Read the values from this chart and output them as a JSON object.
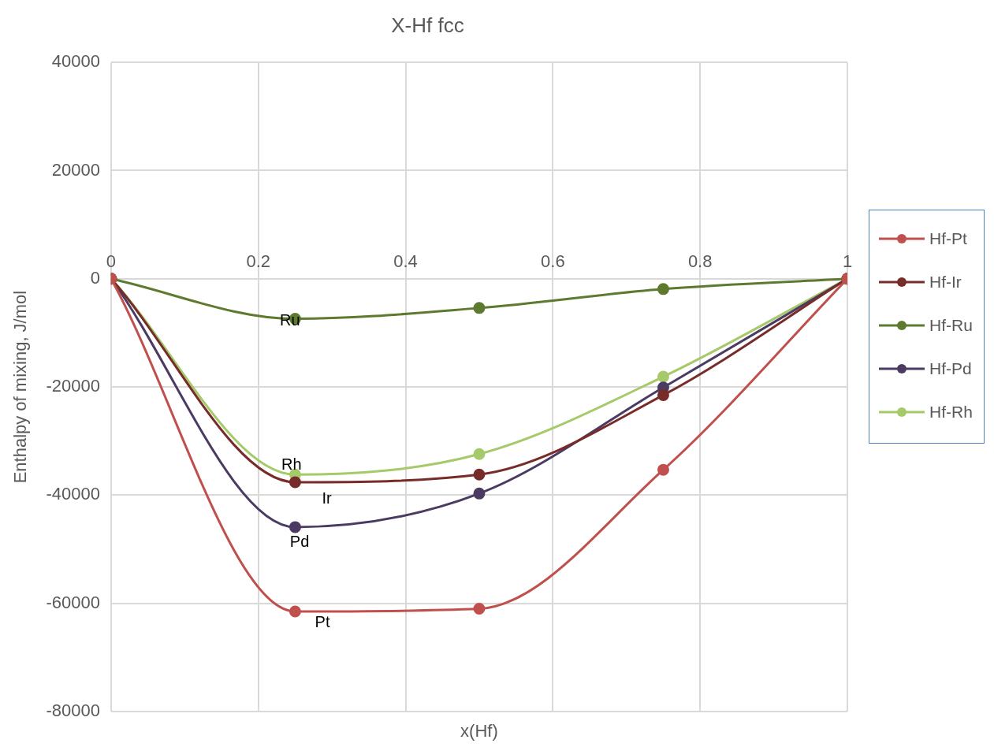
{
  "chart_data": {
    "type": "line",
    "title": "X-Hf fcc",
    "xlabel": "x(Hf)",
    "ylabel": "Enthalpy of mixing, J/mol",
    "x": [
      0,
      0.25,
      0.5,
      0.75,
      1
    ],
    "series": [
      {
        "name": "Hf-Pt",
        "color": "#c0504d",
        "values": [
          0,
          -61500,
          -61000,
          -35300,
          0
        ]
      },
      {
        "name": "Hf-Ir",
        "color": "#772c2a",
        "values": [
          0,
          -37600,
          -36200,
          -21500,
          0
        ]
      },
      {
        "name": "Hf-Ru",
        "color": "#5e7a2e",
        "values": [
          0,
          -7400,
          -5400,
          -1900,
          0
        ]
      },
      {
        "name": "Hf-Pd",
        "color": "#4b3b63",
        "values": [
          0,
          -45900,
          -39700,
          -20100,
          0
        ]
      },
      {
        "name": "Hf-Rh",
        "color": "#a6c96a",
        "values": [
          0,
          -36200,
          -32400,
          -18100,
          0
        ]
      }
    ],
    "xlim": [
      0,
      1
    ],
    "xticks": [
      0,
      0.2,
      0.4,
      0.6,
      0.8,
      1
    ],
    "ylim": [
      -80000,
      40000
    ],
    "yticks": [
      -80000,
      -60000,
      -40000,
      -20000,
      0,
      20000,
      40000
    ],
    "grid": true,
    "legend": "right",
    "marker": "circle",
    "line_style": "solid",
    "annotations": [
      "Ru",
      "Rh",
      "Ir",
      "Pd",
      "Pt"
    ]
  }
}
